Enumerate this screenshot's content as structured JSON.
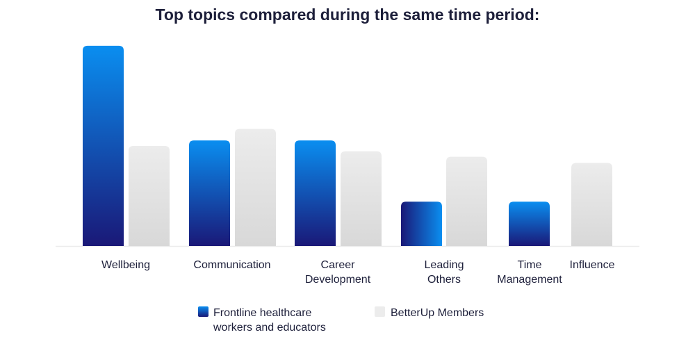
{
  "chart_data": {
    "type": "bar",
    "title": "Top topics compared during the same time period:",
    "categories": [
      "Wellbeing",
      "Communication",
      "Career Development",
      "Leading Others",
      "Time Management",
      "Influence"
    ],
    "category_lines": [
      [
        "Wellbeing"
      ],
      [
        "Communication"
      ],
      [
        "Career",
        "Development"
      ],
      [
        "Leading",
        "Others"
      ],
      [
        "Time",
        "Management"
      ],
      [
        "Influence"
      ]
    ],
    "series": [
      {
        "name": "Frontline healthcare workers and educators",
        "legend_lines": [
          "Frontline healthcare",
          "workers and educators"
        ],
        "color": "#0a8ef0",
        "color_dark": "#1a1877",
        "values": [
          294,
          155,
          155,
          65,
          65,
          null
        ]
      },
      {
        "name": "BetterUp Members",
        "legend_lines": [
          "BetterUp Members"
        ],
        "color": "#ececec",
        "color_dark": "#d8d8d8",
        "values": [
          147,
          172,
          139,
          131,
          null,
          122
        ]
      }
    ],
    "xlabel": "",
    "ylabel": "",
    "ylim": [
      0,
      300
    ],
    "grid": false,
    "legend_position": "bottom-center"
  }
}
